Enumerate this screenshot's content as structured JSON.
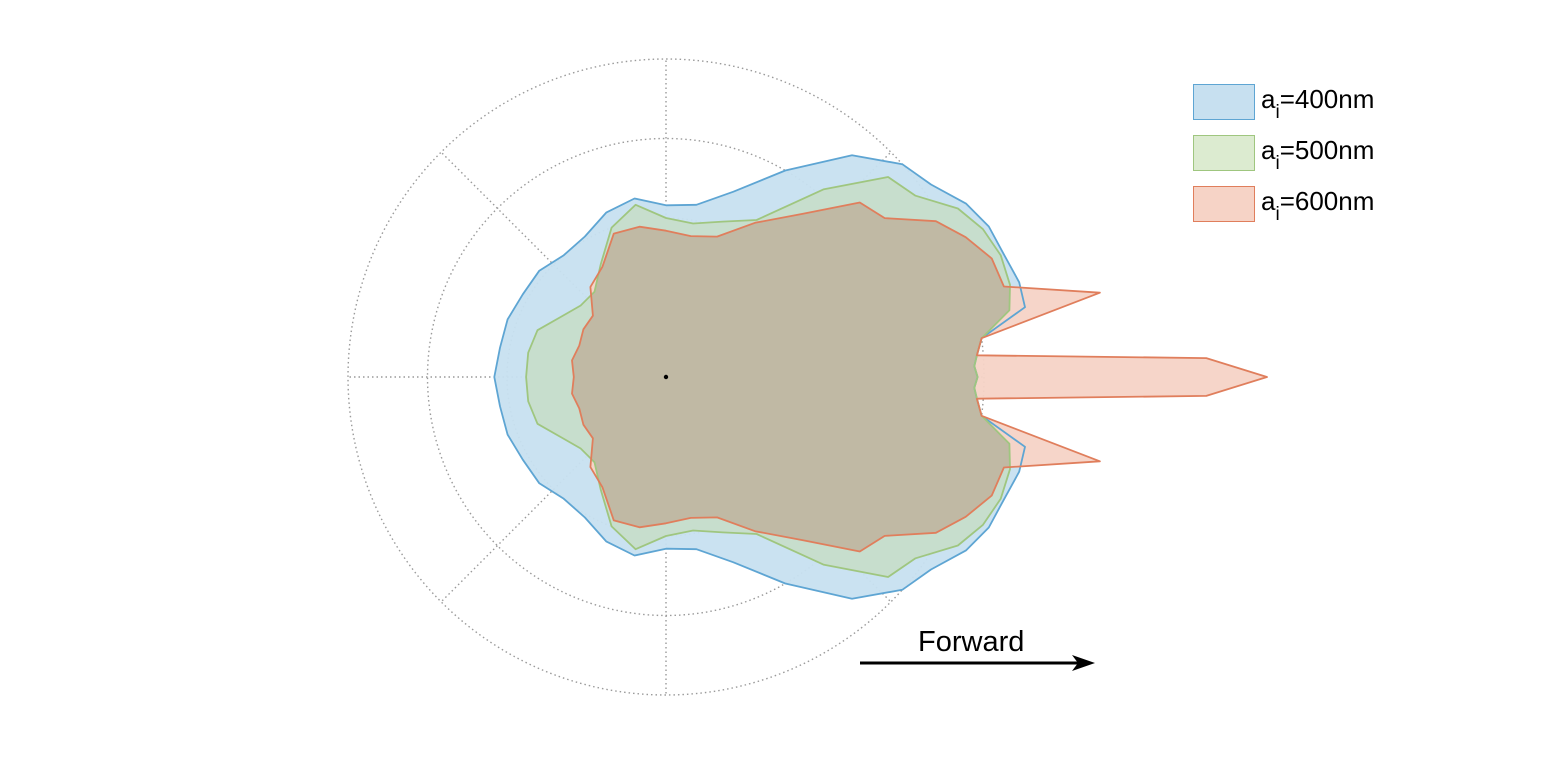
{
  "chart_data": {
    "type": "polar-area",
    "title": "",
    "radial_grid": true,
    "angular_grid_step_deg": 45,
    "radial_grid_rings": 4,
    "r_max": 1.0,
    "legend_position": "top-right",
    "angles_deg": [
      0,
      2,
      4,
      7,
      11,
      15,
      20,
      25,
      30,
      36,
      42,
      50,
      60,
      70,
      80,
      90,
      100,
      110,
      120,
      130,
      140,
      150,
      160,
      170,
      180
    ],
    "series": [
      {
        "name": "400nm",
        "name_prefix": "a",
        "name_subscript": "i",
        "color": "#5ea5d3",
        "fill": "#c7e0f0",
        "r": [
          0.98,
          0.97,
          0.98,
          1.0,
          1.15,
          1.15,
          1.13,
          1.12,
          1.09,
          1.03,
          1.0,
          0.91,
          0.75,
          0.62,
          0.55,
          0.54,
          0.57,
          0.55,
          0.51,
          0.5,
          0.52,
          0.52,
          0.53,
          0.53,
          0.54
        ]
      },
      {
        "name": "500nm",
        "name_prefix": "a",
        "name_subscript": "i",
        "color": "#9fc67f",
        "fill": "#dcebd0",
        "r": [
          0.98,
          0.97,
          0.98,
          1.0,
          1.1,
          1.12,
          1.12,
          1.1,
          1.06,
          0.97,
          0.94,
          0.77,
          0.57,
          0.52,
          0.49,
          0.5,
          0.55,
          0.5,
          0.41,
          0.35,
          0.35,
          0.38,
          0.43,
          0.44,
          0.44
        ]
      },
      {
        "name": "600nm",
        "name_prefix": "a",
        "name_subscript": "i",
        "color": "#e07e5c",
        "fill": "#f6d3c6",
        "r": [
          1.89,
          1.7,
          0.98,
          1.0,
          1.39,
          1.1,
          1.09,
          1.04,
          0.98,
          0.85,
          0.82,
          0.67,
          0.56,
          0.47,
          0.45,
          0.46,
          0.48,
          0.48,
          0.4,
          0.37,
          0.3,
          0.3,
          0.29,
          0.3,
          0.29
        ]
      }
    ],
    "overlap_fill": "#c0b9a4",
    "annotation": "Forward"
  }
}
